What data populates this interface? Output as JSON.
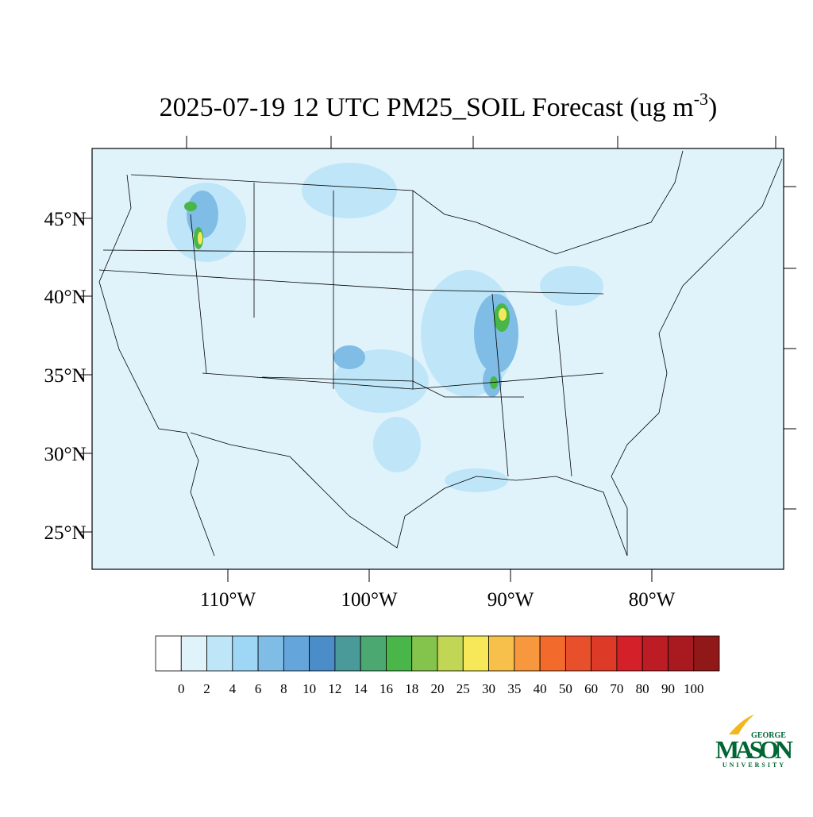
{
  "title": {
    "main": "2025-07-19 12 UTC PM25_SOIL Forecast (ug m",
    "superscript": "-3",
    "end": ")"
  },
  "map": {
    "lat_labels": [
      "45°N",
      "40°N",
      "35°N",
      "30°N",
      "25°N"
    ],
    "lon_labels": [
      "110°W",
      "100°W",
      "90°W",
      "80°W"
    ]
  },
  "colorbar": {
    "labels": [
      0,
      2,
      4,
      6,
      8,
      10,
      12,
      14,
      16,
      18,
      20,
      25,
      30,
      35,
      40,
      50,
      60,
      70,
      80,
      90,
      100
    ],
    "colors": [
      "#ffffff",
      "#e0f3fb",
      "#bfe6f8",
      "#9dd7f5",
      "#80bde6",
      "#64a6db",
      "#4a8dc8",
      "#4a9a9a",
      "#4aa870",
      "#48b648",
      "#84c44c",
      "#c2d655",
      "#f7e85a",
      "#f7c04a",
      "#f7973e",
      "#f26a2c",
      "#e8502c",
      "#de3a28",
      "#d42028",
      "#bc1c24",
      "#a81a20",
      "#901818"
    ]
  },
  "logo": {
    "top": "GEORGE",
    "name": "MASON",
    "bottom": "UNIVERSITY"
  }
}
